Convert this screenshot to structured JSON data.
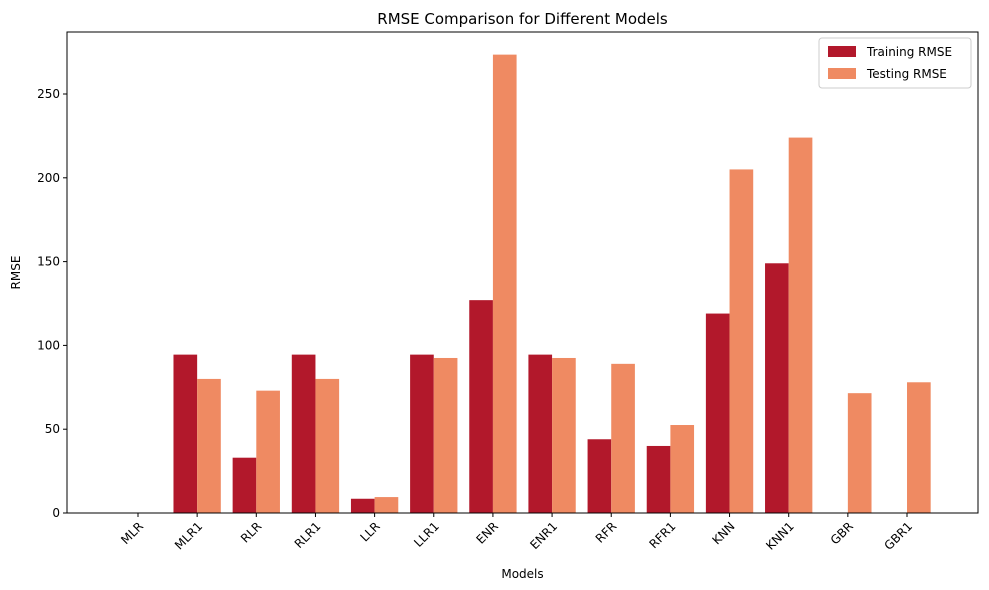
{
  "chart_data": {
    "type": "bar",
    "title": "RMSE Comparison for Different Models",
    "xlabel": "Models",
    "ylabel": "RMSE",
    "categories": [
      "MLR",
      "MLR1",
      "RLR",
      "RLR1",
      "LLR",
      "LLR1",
      "ENR",
      "ENR1",
      "RFR",
      "RFR1",
      "KNN",
      "KNN1",
      "GBR",
      "GBR1"
    ],
    "series": [
      {
        "name": "Training RMSE",
        "color": "#b2182b",
        "values": [
          0,
          94.5,
          33,
          94.5,
          8.5,
          94.5,
          127,
          94.5,
          44,
          40,
          119,
          149,
          0,
          0
        ]
      },
      {
        "name": "Testing RMSE",
        "color": "#ef8a62",
        "values": [
          0,
          80,
          73,
          80,
          9.5,
          92.5,
          273.5,
          92.5,
          89,
          52.5,
          205,
          224,
          71.5,
          78
        ]
      }
    ],
    "ylim": [
      0,
      287
    ],
    "yticks": [
      0,
      50,
      100,
      150,
      200,
      250
    ],
    "grid": false,
    "legend": "top-right"
  }
}
